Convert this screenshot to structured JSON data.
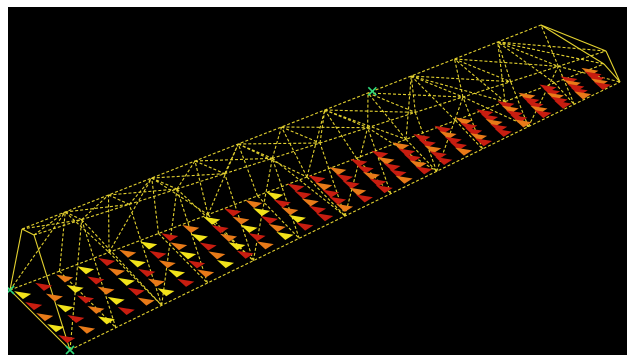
{
  "viewport": {
    "background": "#000000",
    "colors": {
      "truss_member": "#e3d12f",
      "load_arrow_yellow": "#f2e21a",
      "load_arrow_orange": "#e87a18",
      "load_arrow_red": "#c81d10",
      "node_marker": "#2fd87a"
    },
    "model": {
      "description_visible_text": "",
      "panels": 12,
      "load_rows": 5
    }
  }
}
